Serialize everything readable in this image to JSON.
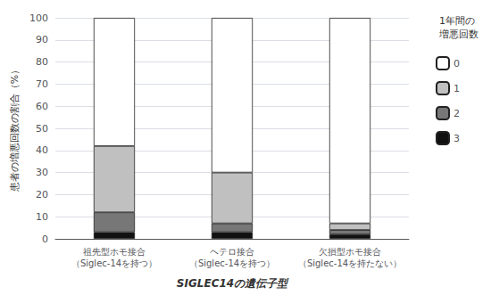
{
  "chart_data": {
    "type": "bar",
    "stacked": true,
    "categories": [
      "祖先型ホモ接合\n（Siglec-14を持つ）",
      "ヘテロ接合\n（Siglec-14を持つ）",
      "欠損型ホモ接合\n（Siglec-14を持たない）"
    ],
    "series": [
      {
        "name": "3",
        "color": "#111111",
        "values": [
          3,
          3,
          2
        ]
      },
      {
        "name": "2",
        "color": "#777777",
        "values": [
          9,
          4,
          2
        ]
      },
      {
        "name": "1",
        "color": "#c0c0c0",
        "values": [
          30,
          23,
          3
        ]
      },
      {
        "name": "0",
        "color": "#ffffff",
        "values": [
          58,
          70,
          93
        ]
      }
    ],
    "ylabel": "患者の増悪回数の割合（%）",
    "xlabel": "SIGLEC14の遺伝子型",
    "legend_title": "1年間の\n増悪回数",
    "legend": "right",
    "ylim": [
      0,
      100
    ],
    "yticks": [
      0,
      10,
      20,
      30,
      40,
      50,
      60,
      70,
      80,
      90,
      100
    ],
    "grid": true
  }
}
